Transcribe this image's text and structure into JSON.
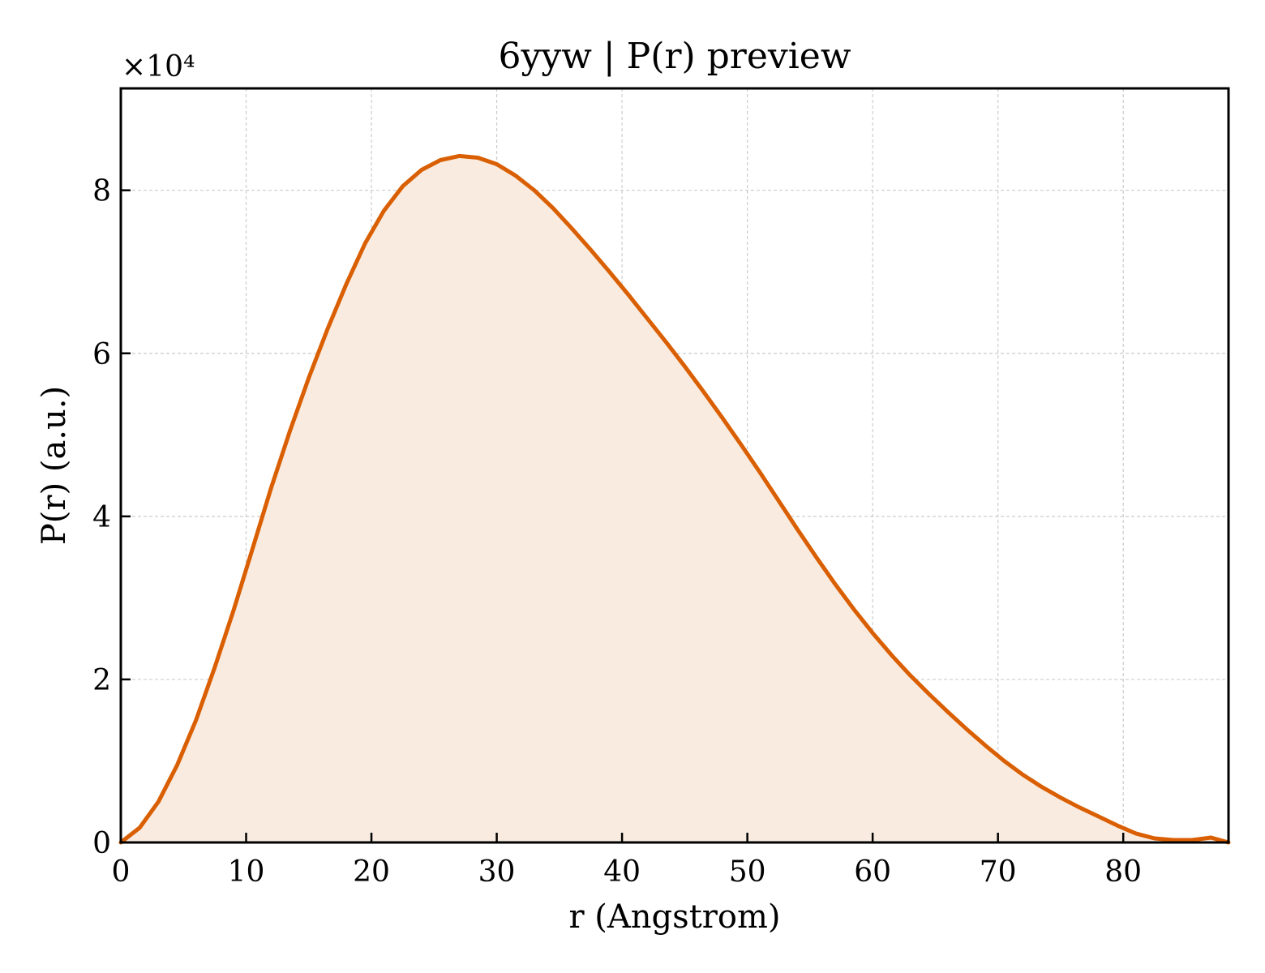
{
  "chart_data": {
    "type": "area",
    "title": "6yyw | P(r) preview",
    "xlabel": "r (Angstrom)",
    "ylabel": "P(r) (a.u.)",
    "y_offset_label": "×10⁴",
    "xlim": [
      0,
      88.4
    ],
    "ylim": [
      0,
      9.25
    ],
    "y_scale_factor": 10000,
    "xticks": [
      0,
      10,
      20,
      30,
      40,
      50,
      60,
      70,
      80
    ],
    "yticks": [
      0,
      2,
      4,
      6,
      8
    ],
    "grid": true,
    "colors": {
      "line": "#d95f02",
      "fill": "#f9ebe0"
    },
    "x": [
      0,
      1.5,
      3,
      4.5,
      6,
      7.5,
      9,
      10.5,
      12,
      13.5,
      15,
      16.5,
      18,
      19.5,
      21,
      22.5,
      24,
      25.5,
      27,
      28.5,
      30,
      31.5,
      33,
      34.5,
      36,
      37.5,
      39,
      40.5,
      42,
      43.5,
      45,
      46.5,
      48,
      49.5,
      51,
      52.5,
      54,
      55.5,
      57,
      58.5,
      60,
      61.5,
      63,
      64.5,
      66,
      67.5,
      69,
      70.5,
      72,
      73.5,
      75,
      76.5,
      78,
      79.5,
      81,
      82.5,
      84,
      85.5,
      87,
      88.4
    ],
    "y": [
      0,
      0.18,
      0.5,
      0.95,
      1.5,
      2.15,
      2.85,
      3.6,
      4.35,
      5.05,
      5.7,
      6.3,
      6.85,
      7.35,
      7.75,
      8.05,
      8.25,
      8.37,
      8.42,
      8.4,
      8.32,
      8.18,
      8.0,
      7.78,
      7.53,
      7.27,
      7.0,
      6.72,
      6.43,
      6.14,
      5.84,
      5.53,
      5.21,
      4.88,
      4.54,
      4.19,
      3.84,
      3.5,
      3.17,
      2.86,
      2.57,
      2.3,
      2.05,
      1.82,
      1.6,
      1.39,
      1.19,
      1.0,
      0.83,
      0.68,
      0.55,
      0.43,
      0.32,
      0.21,
      0.11,
      0.05,
      0.03,
      0.03,
      0.06,
      0.0
    ]
  }
}
